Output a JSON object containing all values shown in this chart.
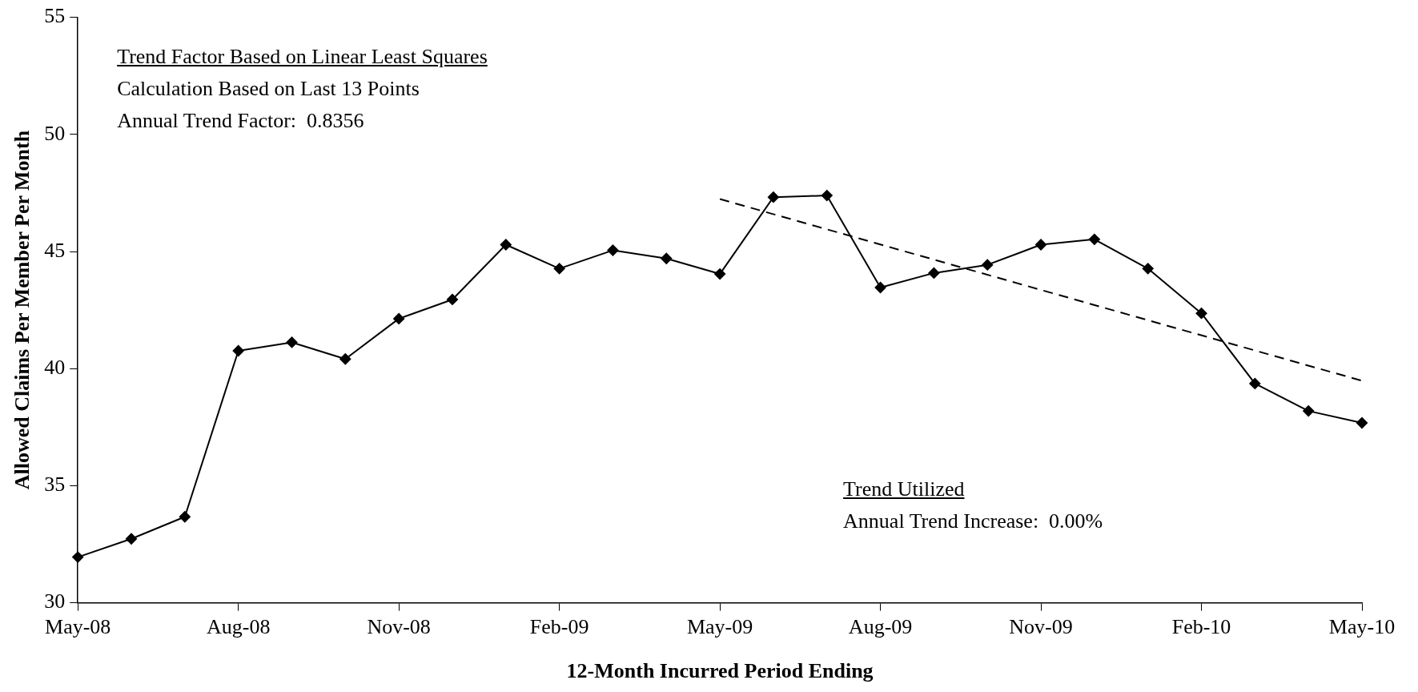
{
  "chart_data": {
    "type": "line",
    "xlabel": "12-Month Incurred Period Ending",
    "ylabel": "Allowed Claims Per Member Per Month",
    "categories": [
      "May-08",
      null,
      null,
      "Aug-08",
      null,
      null,
      "Nov-08",
      null,
      null,
      "Feb-09",
      null,
      null,
      "May-09",
      null,
      null,
      "Aug-09",
      null,
      null,
      "Nov-09",
      null,
      null,
      "Feb-10",
      null,
      null,
      "May-10"
    ],
    "series": [
      {
        "color": "#000000",
        "marker": "diamond",
        "line_style": "solid",
        "values": [
          31.95,
          32.73,
          33.67,
          40.76,
          41.12,
          40.41,
          42.13,
          42.95,
          45.29,
          44.27,
          45.05,
          44.7,
          44.04,
          47.32,
          47.39,
          43.46,
          44.08,
          44.43,
          45.29,
          45.52,
          44.27,
          42.36,
          39.36,
          38.19,
          37.68
        ]
      },
      {
        "type": "line",
        "color": "#000000",
        "marker": "none",
        "line_style": "dashed",
        "x": [
          "May-09",
          "May-10"
        ],
        "values": [
          47.24,
          39.48
        ]
      }
    ],
    "ylim": [
      30,
      55
    ],
    "yticks": [
      30,
      35,
      40,
      45,
      50,
      55
    ],
    "grid": false,
    "legend": false,
    "annotations": [
      "Trend Factor Based on Linear Least Squares",
      "Calculation Based on Last 13 Points",
      "Annual Trend Factor:  0.8356",
      "Trend Utilized",
      "Annual Trend Increase:  0.00%"
    ]
  }
}
